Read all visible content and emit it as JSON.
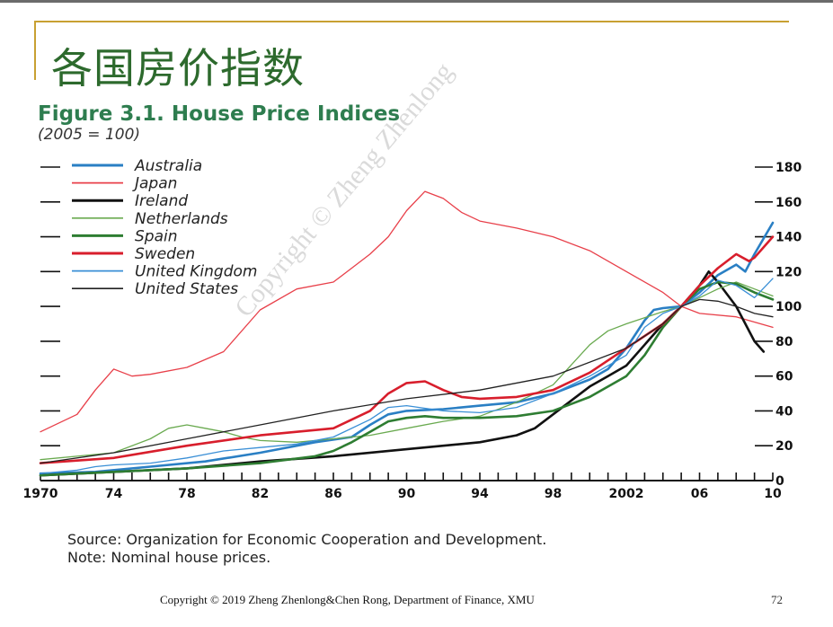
{
  "slide": {
    "title": "各国房价指数",
    "page_number": "72",
    "footer": "Copyright © 2019 Zheng Zhenlong&Chen Rong, Department of Finance,  XMU",
    "watermark": "Copyright © Zheng Zhenlong"
  },
  "figure": {
    "title": "Figure 3.1. House Price Indices",
    "subtitle": "(2005 = 100)",
    "source": "Source: Organization for Economic Cooperation and Development.",
    "note": "Note: Nominal house prices."
  },
  "chart_data": {
    "type": "line",
    "title": "Figure 3.1. House Price Indices",
    "subtitle": "(2005 = 100)",
    "xlabel": "",
    "ylabel": "",
    "xlim": [
      1970,
      2010
    ],
    "ylim": [
      0,
      180
    ],
    "y_ticks": [
      0,
      20,
      40,
      60,
      80,
      100,
      120,
      140,
      160,
      180
    ],
    "x_tick_labels": [
      {
        "x": 1970,
        "label": "1970"
      },
      {
        "x": 1974,
        "label": "74"
      },
      {
        "x": 1978,
        "label": "78"
      },
      {
        "x": 1982,
        "label": "82"
      },
      {
        "x": 1986,
        "label": "86"
      },
      {
        "x": 1990,
        "label": "90"
      },
      {
        "x": 1994,
        "label": "94"
      },
      {
        "x": 1998,
        "label": "98"
      },
      {
        "x": 2002,
        "label": "2002"
      },
      {
        "x": 2006,
        "label": "06"
      },
      {
        "x": 2010,
        "label": "10"
      }
    ],
    "legend_position": "top-left",
    "series": [
      {
        "name": "Australia",
        "color": "#2a7fc4",
        "width": 2.6,
        "x": [
          1970,
          1973,
          1976,
          1979,
          1982,
          1985,
          1987,
          1988,
          1989,
          1990,
          1992,
          1994,
          1996,
          1998,
          1999,
          2000,
          2001,
          2002,
          2003,
          2003.5,
          2004,
          2005,
          2006,
          2007,
          2008,
          2008.5,
          2009,
          2010
        ],
        "y": [
          4,
          5,
          8,
          11,
          16,
          22,
          25,
          32,
          38,
          40,
          41,
          43,
          45,
          50,
          54,
          58,
          64,
          76,
          92,
          98,
          99,
          100,
          108,
          118,
          124,
          120,
          130,
          148
        ]
      },
      {
        "name": "Japan",
        "color": "#e8404a",
        "width": 1.3,
        "x": [
          1970,
          1972,
          1973,
          1974,
          1975,
          1976,
          1978,
          1980,
          1982,
          1984,
          1986,
          1987,
          1988,
          1989,
          1990,
          1991,
          1992,
          1993,
          1994,
          1996,
          1998,
          2000,
          2002,
          2004,
          2005,
          2006,
          2008,
          2010
        ],
        "y": [
          28,
          38,
          52,
          64,
          60,
          61,
          65,
          74,
          98,
          110,
          114,
          122,
          130,
          140,
          155,
          166,
          162,
          154,
          149,
          145,
          140,
          132,
          120,
          108,
          100,
          96,
          94,
          88
        ]
      },
      {
        "name": "Ireland",
        "color": "#111111",
        "width": 2.6,
        "x": [
          1970,
          1974,
          1978,
          1982,
          1986,
          1990,
          1994,
          1996,
          1997,
          1998,
          1999,
          2000,
          2001,
          2002,
          2003,
          2004,
          2005,
          2006,
          2006.5,
          2007,
          2008,
          2009,
          2009.5
        ],
        "y": [
          3,
          5,
          7,
          11,
          14,
          18,
          22,
          26,
          30,
          38,
          46,
          54,
          60,
          66,
          78,
          90,
          100,
          112,
          120,
          114,
          100,
          80,
          74
        ]
      },
      {
        "name": "Netherlands",
        "color": "#6aaa50",
        "width": 1.3,
        "x": [
          1970,
          1974,
          1976,
          1977,
          1978,
          1979,
          1980,
          1981,
          1982,
          1984,
          1986,
          1988,
          1990,
          1992,
          1994,
          1996,
          1998,
          2000,
          2001,
          2002,
          2004,
          2005,
          2006,
          2007,
          2008,
          2009,
          2010
        ],
        "y": [
          12,
          16,
          24,
          30,
          32,
          30,
          28,
          25,
          23,
          22,
          24,
          26,
          30,
          34,
          37,
          45,
          55,
          78,
          86,
          90,
          97,
          100,
          105,
          110,
          114,
          110,
          106
        ]
      },
      {
        "name": "Spain",
        "color": "#2e7d32",
        "width": 2.6,
        "x": [
          1970,
          1974,
          1978,
          1982,
          1985,
          1986,
          1987,
          1988,
          1989,
          1990,
          1991,
          1992,
          1994,
          1996,
          1998,
          2000,
          2002,
          2003,
          2004,
          2005,
          2006,
          2007,
          2008,
          2009,
          2010
        ],
        "y": [
          3,
          5,
          7,
          10,
          14,
          17,
          22,
          28,
          34,
          36,
          37,
          36,
          36,
          37,
          40,
          48,
          60,
          72,
          88,
          100,
          110,
          114,
          113,
          108,
          104
        ]
      },
      {
        "name": "Sweden",
        "color": "#d81e2c",
        "width": 2.6,
        "x": [
          1970,
          1974,
          1978,
          1982,
          1986,
          1988,
          1989,
          1990,
          1991,
          1992,
          1993,
          1994,
          1996,
          1998,
          2000,
          2002,
          2004,
          2005,
          2006,
          2007,
          2008,
          2008.7,
          2009,
          2010
        ],
        "y": [
          10,
          13,
          20,
          26,
          30,
          40,
          50,
          56,
          57,
          52,
          48,
          47,
          48,
          52,
          62,
          76,
          90,
          100,
          112,
          122,
          130,
          126,
          128,
          140
        ]
      },
      {
        "name": "United Kingdom",
        "color": "#3a8fd6",
        "width": 1.3,
        "x": [
          1970,
          1972,
          1973,
          1974,
          1976,
          1978,
          1980,
          1982,
          1984,
          1986,
          1988,
          1989,
          1990,
          1992,
          1994,
          1996,
          1998,
          2000,
          2002,
          2003,
          2004,
          2005,
          2006,
          2007,
          2008,
          2009,
          2010
        ],
        "y": [
          4,
          6,
          8,
          9,
          10,
          13,
          17,
          19,
          21,
          25,
          35,
          42,
          43,
          40,
          39,
          42,
          50,
          60,
          72,
          88,
          96,
          100,
          106,
          115,
          112,
          105,
          116
        ]
      },
      {
        "name": "United States",
        "color": "#222222",
        "width": 1.3,
        "x": [
          1970,
          1974,
          1978,
          1982,
          1986,
          1990,
          1994,
          1998,
          2002,
          2004,
          2005,
          2006,
          2007,
          2008,
          2009,
          2010
        ],
        "y": [
          10,
          16,
          24,
          32,
          40,
          47,
          52,
          60,
          76,
          90,
          100,
          104,
          103,
          100,
          96,
          94
        ]
      }
    ]
  }
}
